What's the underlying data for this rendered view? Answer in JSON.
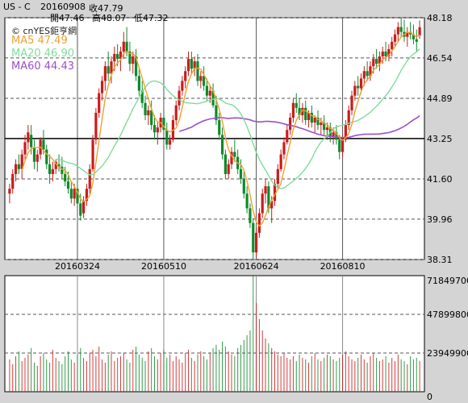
{
  "header": {
    "symbol": "US - C",
    "date": "20160908",
    "close_label": "收47.79",
    "open_label": "開47.46",
    "high_label": "高48.07",
    "low_label": "低47.32"
  },
  "watermark": "© cnYES鉅亨網",
  "legend": {
    "ma5": "MA5 47.49",
    "ma20": "MA20 46.90",
    "ma60": "MA60 44.43"
  },
  "colors": {
    "up": "#cc1b1b",
    "down": "#0f8a2b",
    "ma5": "#f0a030",
    "ma20": "#7fdc9a",
    "ma60": "#9a50c8",
    "volume": "#b04848",
    "background": "#ffffff",
    "frame": "#d4d4d4"
  },
  "chart_data": [
    {
      "type": "candlestick",
      "title": "US - C",
      "x_tick_labels": [
        "20160324",
        "20160510",
        "20160624",
        "20160810"
      ],
      "y_tick_labels": [
        "48.18",
        "46.54",
        "44.89",
        "43.25",
        "41.60",
        "39.96",
        "38.31"
      ],
      "ylim": [
        38.31,
        48.18
      ],
      "grid": true,
      "candles_ohlc": [
        [
          41.0,
          41.4,
          40.6,
          41.2
        ],
        [
          41.2,
          42.0,
          41.0,
          41.8
        ],
        [
          41.8,
          42.4,
          41.5,
          42.2
        ],
        [
          42.2,
          42.6,
          41.8,
          42.0
        ],
        [
          42.0,
          42.8,
          41.6,
          42.6
        ],
        [
          42.6,
          43.4,
          42.3,
          43.1
        ],
        [
          43.1,
          43.8,
          42.8,
          43.5
        ],
        [
          43.4,
          43.8,
          42.6,
          42.9
        ],
        [
          42.9,
          43.2,
          42.0,
          42.3
        ],
        [
          42.3,
          42.8,
          41.9,
          42.6
        ],
        [
          42.6,
          43.3,
          42.4,
          43.2
        ],
        [
          43.2,
          43.6,
          42.6,
          42.8
        ],
        [
          42.8,
          43.0,
          42.0,
          42.2
        ],
        [
          42.2,
          42.6,
          41.4,
          41.8
        ],
        [
          41.8,
          42.3,
          41.5,
          42.0
        ],
        [
          42.0,
          42.4,
          41.8,
          42.3
        ],
        [
          42.2,
          42.6,
          41.9,
          42.1
        ],
        [
          42.1,
          42.5,
          41.6,
          41.8
        ],
        [
          41.8,
          42.1,
          41.3,
          41.5
        ],
        [
          41.5,
          41.9,
          41.0,
          41.2
        ],
        [
          41.2,
          41.5,
          40.6,
          40.8
        ],
        [
          40.8,
          41.4,
          40.5,
          41.2
        ],
        [
          41.2,
          41.6,
          40.4,
          40.6
        ],
        [
          40.6,
          41.0,
          39.9,
          40.1
        ],
        [
          40.2,
          40.9,
          40.0,
          40.7
        ],
        [
          40.7,
          41.4,
          40.5,
          41.2
        ],
        [
          41.2,
          42.2,
          41.0,
          42.0
        ],
        [
          42.0,
          43.4,
          41.9,
          43.2
        ],
        [
          43.2,
          44.5,
          43.0,
          44.3
        ],
        [
          44.3,
          45.3,
          44.1,
          45.1
        ],
        [
          45.1,
          45.8,
          44.8,
          45.6
        ],
        [
          45.6,
          46.4,
          45.2,
          46.2
        ],
        [
          46.2,
          46.8,
          45.6,
          45.9
        ],
        [
          45.9,
          46.6,
          45.5,
          46.4
        ],
        [
          46.4,
          47.0,
          46.0,
          46.7
        ],
        [
          46.7,
          47.1,
          46.2,
          46.5
        ],
        [
          46.5,
          47.0,
          46.0,
          46.8
        ],
        [
          46.8,
          47.6,
          46.5,
          47.2
        ],
        [
          47.2,
          47.8,
          46.6,
          46.8
        ],
        [
          46.8,
          47.2,
          46.0,
          46.3
        ],
        [
          46.3,
          46.8,
          45.9,
          46.6
        ],
        [
          46.6,
          46.9,
          45.6,
          45.8
        ],
        [
          45.8,
          46.1,
          45.0,
          45.2
        ],
        [
          45.2,
          45.6,
          44.5,
          44.7
        ],
        [
          44.7,
          45.0,
          44.0,
          44.2
        ],
        [
          44.2,
          44.6,
          43.8,
          44.4
        ],
        [
          44.4,
          44.8,
          43.6,
          43.8
        ],
        [
          43.8,
          44.2,
          43.2,
          43.5
        ],
        [
          43.5,
          43.9,
          43.0,
          43.7
        ],
        [
          43.7,
          44.3,
          43.5,
          44.1
        ],
        [
          44.1,
          44.4,
          43.4,
          43.6
        ],
        [
          43.6,
          43.9,
          42.8,
          43.0
        ],
        [
          43.0,
          43.4,
          42.8,
          43.2
        ],
        [
          43.2,
          44.2,
          43.1,
          44.0
        ],
        [
          44.0,
          44.8,
          43.8,
          44.6
        ],
        [
          44.6,
          45.4,
          44.4,
          45.2
        ],
        [
          45.2,
          45.8,
          45.0,
          45.6
        ],
        [
          45.6,
          46.2,
          45.3,
          46.0
        ],
        [
          46.0,
          46.8,
          45.8,
          46.5
        ],
        [
          46.5,
          46.8,
          45.9,
          46.1
        ],
        [
          46.1,
          46.6,
          45.8,
          46.4
        ],
        [
          46.4,
          46.7,
          45.4,
          45.6
        ],
        [
          45.6,
          46.0,
          45.3,
          45.8
        ],
        [
          45.8,
          46.2,
          45.2,
          45.4
        ],
        [
          45.4,
          45.7,
          44.8,
          45.0
        ],
        [
          45.0,
          45.4,
          44.7,
          45.2
        ],
        [
          45.2,
          45.5,
          44.5,
          44.6
        ],
        [
          44.6,
          45.0,
          43.8,
          44.0
        ],
        [
          44.0,
          44.3,
          43.2,
          43.4
        ],
        [
          43.4,
          43.7,
          42.4,
          42.6
        ],
        [
          42.6,
          42.8,
          41.6,
          41.8
        ],
        [
          41.8,
          42.4,
          41.6,
          42.2
        ],
        [
          42.2,
          42.9,
          42.0,
          42.7
        ],
        [
          42.7,
          43.2,
          42.3,
          42.5
        ],
        [
          42.5,
          42.8,
          41.8,
          42.0
        ],
        [
          42.0,
          42.4,
          41.4,
          41.6
        ],
        [
          41.6,
          41.9,
          40.8,
          41.0
        ],
        [
          41.0,
          41.3,
          40.2,
          40.4
        ],
        [
          40.4,
          40.6,
          39.6,
          39.8
        ],
        [
          39.8,
          40.0,
          38.3,
          38.6
        ],
        [
          38.6,
          39.6,
          38.4,
          39.4
        ],
        [
          39.4,
          40.4,
          39.2,
          40.2
        ],
        [
          40.2,
          41.2,
          40.0,
          41.0
        ],
        [
          41.0,
          41.6,
          40.6,
          41.3
        ],
        [
          41.3,
          41.5,
          40.2,
          40.4
        ],
        [
          40.4,
          40.9,
          39.8,
          40.7
        ],
        [
          40.7,
          41.6,
          40.5,
          41.4
        ],
        [
          41.4,
          42.2,
          41.2,
          42.0
        ],
        [
          42.0,
          42.8,
          41.9,
          42.6
        ],
        [
          42.6,
          43.3,
          42.4,
          43.1
        ],
        [
          43.1,
          43.8,
          43.0,
          43.6
        ],
        [
          43.6,
          44.3,
          43.4,
          44.1
        ],
        [
          44.1,
          44.9,
          43.9,
          44.7
        ],
        [
          44.7,
          45.1,
          44.3,
          44.5
        ],
        [
          44.5,
          44.9,
          44.0,
          44.2
        ],
        [
          44.2,
          44.7,
          43.9,
          44.5
        ],
        [
          44.5,
          44.8,
          43.8,
          44.0
        ],
        [
          44.0,
          44.4,
          43.7,
          44.3
        ],
        [
          44.3,
          44.6,
          43.7,
          43.9
        ],
        [
          43.9,
          44.2,
          43.5,
          44.1
        ],
        [
          44.1,
          44.4,
          43.6,
          43.8
        ],
        [
          43.8,
          44.1,
          43.4,
          43.9
        ],
        [
          43.9,
          44.2,
          43.4,
          43.6
        ],
        [
          43.6,
          43.9,
          43.2,
          43.7
        ],
        [
          43.7,
          43.9,
          43.1,
          43.3
        ],
        [
          43.3,
          43.7,
          43.0,
          43.5
        ],
        [
          43.5,
          43.8,
          43.0,
          43.2
        ],
        [
          43.2,
          43.4,
          42.4,
          42.7
        ],
        [
          42.7,
          43.4,
          42.5,
          43.2
        ],
        [
          43.2,
          44.0,
          43.1,
          43.8
        ],
        [
          43.8,
          44.6,
          43.6,
          44.4
        ],
        [
          44.4,
          45.2,
          44.2,
          45.0
        ],
        [
          45.0,
          45.6,
          44.8,
          45.4
        ],
        [
          45.4,
          45.8,
          45.0,
          45.3
        ],
        [
          45.3,
          45.9,
          45.1,
          45.7
        ],
        [
          45.7,
          46.2,
          45.4,
          46.0
        ],
        [
          46.0,
          46.4,
          45.6,
          45.8
        ],
        [
          45.8,
          46.4,
          45.6,
          46.2
        ],
        [
          46.2,
          46.7,
          45.9,
          46.5
        ],
        [
          46.5,
          46.9,
          46.1,
          46.3
        ],
        [
          46.3,
          46.8,
          46.0,
          46.6
        ],
        [
          46.6,
          47.0,
          46.3,
          46.8
        ],
        [
          46.8,
          47.2,
          46.4,
          46.6
        ],
        [
          46.6,
          47.1,
          46.4,
          46.9
        ],
        [
          46.9,
          47.4,
          46.6,
          47.2
        ],
        [
          47.2,
          47.7,
          47.0,
          47.5
        ],
        [
          47.5,
          48.0,
          47.2,
          47.8
        ],
        [
          47.8,
          48.2,
          47.4,
          47.6
        ],
        [
          47.6,
          48.1,
          47.2,
          47.4
        ],
        [
          47.4,
          47.8,
          47.0,
          47.6
        ],
        [
          47.6,
          48.0,
          47.3,
          47.5
        ],
        [
          47.5,
          47.9,
          47.1,
          47.3
        ],
        [
          47.3,
          47.7,
          46.8,
          47.2
        ],
        [
          47.46,
          48.07,
          47.32,
          47.79
        ]
      ],
      "ma_series": [
        {
          "name": "MA5",
          "value": 47.49
        },
        {
          "name": "MA20",
          "value": 46.9
        },
        {
          "name": "MA60",
          "value": 44.43
        }
      ]
    },
    {
      "type": "bar",
      "y_tick_labels": [
        "71849700",
        "47899800",
        "23949900",
        "0"
      ],
      "ylim": [
        0,
        71849700
      ],
      "grid": true,
      "values": [
        20000000,
        17000000,
        22000000,
        25000000,
        19000000,
        21000000,
        23000000,
        27000000,
        18000000,
        16000000,
        22000000,
        24000000,
        20000000,
        18000000,
        26000000,
        21000000,
        19000000,
        17000000,
        22000000,
        25000000,
        20000000,
        18000000,
        23000000,
        27000000,
        21000000,
        19000000,
        24000000,
        26000000,
        22000000,
        28000000,
        20000000,
        18000000,
        23000000,
        25000000,
        19000000,
        21000000,
        22000000,
        24000000,
        20000000,
        18000000,
        26000000,
        28000000,
        23000000,
        21000000,
        19000000,
        25000000,
        27000000,
        22000000,
        20000000,
        24000000,
        26000000,
        21000000,
        23000000,
        19000000,
        22000000,
        20000000,
        18000000,
        24000000,
        26000000,
        21000000,
        19000000,
        23000000,
        25000000,
        22000000,
        20000000,
        24000000,
        27000000,
        29000000,
        26000000,
        31000000,
        28000000,
        25000000,
        23000000,
        22000000,
        27000000,
        29000000,
        32000000,
        35000000,
        38000000,
        71849700,
        55000000,
        45000000,
        38000000,
        33000000,
        30000000,
        27000000,
        25000000,
        23000000,
        22000000,
        24000000,
        21000000,
        20000000,
        22000000,
        19000000,
        23000000,
        21000000,
        20000000,
        18000000,
        22000000,
        24000000,
        20000000,
        19000000,
        21000000,
        23000000,
        22000000,
        20000000,
        19000000,
        21000000,
        23000000,
        25000000,
        22000000,
        20000000,
        19000000,
        21000000,
        23000000,
        20000000,
        18000000,
        22000000,
        24000000,
        21000000,
        19000000,
        20000000,
        22000000,
        18000000,
        21000000,
        19000000,
        23000000,
        20000000,
        19000000,
        17000000,
        22000000,
        20000000,
        21000000,
        19000000
      ]
    }
  ]
}
